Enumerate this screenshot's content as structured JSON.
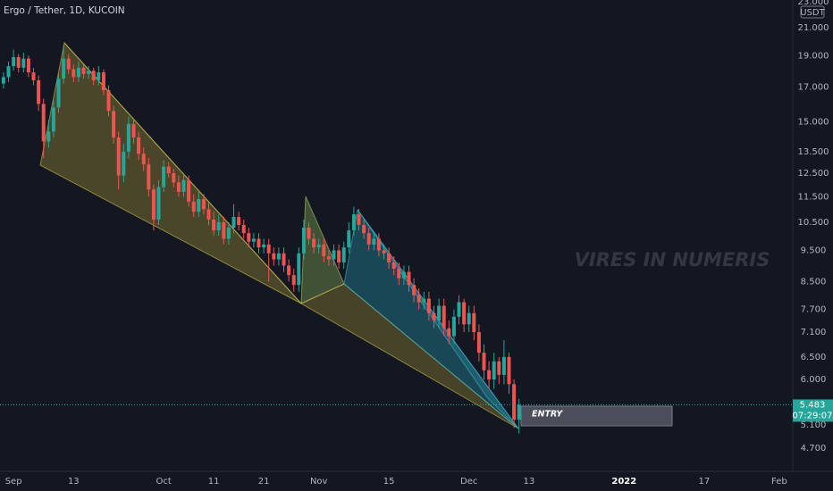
{
  "chart_data": {
    "type": "candlestick",
    "title": "Ergo / Tether, 1D, KUCOIN",
    "watermark": "VIRES IN NUMERIS",
    "annotation": "ENTRY",
    "currency": "USDT",
    "countdown": "07:29:07",
    "up_color": "#26a69a",
    "down_color": "#ef5350",
    "log_scale": true,
    "grid": false,
    "open": [
      17.2,
      17.6,
      18.3,
      18.9,
      18.2,
      18.8,
      17.9,
      17.4,
      16.0,
      14.0,
      14.5,
      15.8,
      17.5,
      18.8,
      18.1,
      17.6,
      18.2,
      17.8,
      18.0,
      17.4,
      17.9,
      16.8,
      15.6,
      14.2,
      12.4,
      13.5,
      14.9,
      14.2,
      13.4,
      12.9,
      11.8,
      10.6,
      11.9,
      12.8,
      12.5,
      12.1,
      11.7,
      12.2,
      11.3,
      10.9,
      11.4,
      11.0,
      10.6,
      10.2,
      10.5,
      9.9,
      10.3,
      10.7,
      10.4,
      10.1,
      9.8,
      9.9,
      9.6,
      9.7,
      9.4,
      9.2,
      9.4,
      9.0,
      8.7,
      8.4,
      9.4,
      10.3,
      9.9,
      9.6,
      9.7,
      9.3,
      9.2,
      9.5,
      9.1,
      9.6,
      10.2,
      10.8,
      10.4,
      10.1,
      9.7,
      9.9,
      9.5,
      9.4,
      9.1,
      8.9,
      8.6,
      8.8,
      8.4,
      8.1,
      7.9,
      8.0,
      7.6,
      7.4,
      7.8,
      7.2,
      7.0,
      7.5,
      7.9,
      7.3,
      7.6,
      7.1,
      6.6,
      6.2,
      6.0,
      6.4,
      6.1,
      6.5,
      5.9,
      5.2
    ],
    "high": [
      17.9,
      18.6,
      19.4,
      19.1,
      19.2,
      19.0,
      18.2,
      17.7,
      16.3,
      15.1,
      16.2,
      17.9,
      19.7,
      19.1,
      18.4,
      18.6,
      18.4,
      18.3,
      18.2,
      18.3,
      18.1,
      17.1,
      15.9,
      14.5,
      13.9,
      15.3,
      15.2,
      14.5,
      13.7,
      13.2,
      12.0,
      12.2,
      13.1,
      13.0,
      12.7,
      12.4,
      12.5,
      12.4,
      11.6,
      11.7,
      11.6,
      11.3,
      10.9,
      10.8,
      10.7,
      10.5,
      11.2,
      10.9,
      10.6,
      10.3,
      10.1,
      10.1,
      9.9,
      9.9,
      9.6,
      9.6,
      9.6,
      9.2,
      8.9,
      9.6,
      10.6,
      10.5,
      10.1,
      9.9,
      9.9,
      9.5,
      9.7,
      9.7,
      9.8,
      10.5,
      11.1,
      11.0,
      10.6,
      10.3,
      10.1,
      10.1,
      9.7,
      9.6,
      9.3,
      9.1,
      9.0,
      9.0,
      8.6,
      8.3,
      8.2,
      8.2,
      7.8,
      8.0,
      8.0,
      7.4,
      7.7,
      8.1,
      8.0,
      7.8,
      7.8,
      7.3,
      6.8,
      6.4,
      6.6,
      6.5,
      6.9,
      6.6,
      6.0,
      5.6
    ],
    "low": [
      16.9,
      17.3,
      18.0,
      17.9,
      17.9,
      17.6,
      17.1,
      15.6,
      13.2,
      13.7,
      14.2,
      15.5,
      17.2,
      17.8,
      17.3,
      17.3,
      17.5,
      17.5,
      17.1,
      17.1,
      16.5,
      15.3,
      13.9,
      11.8,
      12.1,
      13.2,
      13.9,
      13.1,
      12.6,
      11.5,
      10.2,
      10.4,
      11.7,
      12.3,
      11.9,
      11.5,
      11.5,
      11.1,
      10.7,
      10.7,
      10.8,
      10.4,
      10.0,
      10.0,
      9.7,
      9.7,
      10.1,
      10.2,
      9.9,
      9.6,
      9.6,
      9.4,
      9.4,
      8.5,
      9.0,
      9.0,
      8.8,
      8.5,
      8.2,
      8.2,
      9.2,
      9.7,
      9.4,
      9.4,
      9.1,
      9.0,
      9.0,
      8.9,
      8.9,
      9.4,
      10.0,
      10.2,
      9.9,
      9.5,
      9.5,
      9.3,
      9.2,
      8.9,
      8.7,
      8.4,
      8.4,
      8.2,
      7.9,
      7.7,
      7.7,
      7.4,
      7.2,
      7.2,
      7.0,
      6.8,
      6.8,
      7.3,
      7.1,
      7.1,
      6.9,
      6.4,
      6.0,
      5.8,
      5.8,
      5.9,
      5.9,
      5.7,
      5.05,
      4.95
    ],
    "close": [
      17.6,
      18.3,
      18.9,
      18.2,
      18.8,
      17.9,
      17.4,
      16.0,
      14.0,
      14.5,
      15.8,
      17.5,
      18.8,
      18.1,
      17.6,
      18.2,
      17.8,
      18.0,
      17.4,
      17.9,
      16.8,
      15.6,
      14.2,
      12.4,
      13.5,
      14.9,
      14.2,
      13.4,
      12.9,
      11.8,
      10.6,
      11.9,
      12.8,
      12.5,
      12.1,
      11.7,
      12.2,
      11.3,
      10.9,
      11.4,
      11.0,
      10.6,
      10.2,
      10.5,
      9.9,
      10.3,
      10.7,
      10.4,
      10.1,
      9.8,
      9.9,
      9.6,
      9.7,
      9.4,
      9.2,
      9.4,
      9.0,
      8.7,
      8.4,
      9.4,
      10.3,
      9.9,
      9.6,
      9.7,
      9.3,
      9.2,
      9.5,
      9.1,
      9.6,
      10.2,
      10.8,
      10.4,
      10.1,
      9.7,
      9.9,
      9.5,
      9.4,
      9.1,
      8.9,
      8.6,
      8.8,
      8.4,
      8.1,
      7.9,
      8.0,
      7.6,
      7.4,
      7.8,
      7.2,
      7.0,
      7.5,
      7.9,
      7.3,
      7.6,
      7.1,
      6.6,
      6.2,
      6.0,
      6.4,
      6.1,
      6.5,
      5.9,
      5.2,
      5.483
    ],
    "xlim": [
      -0.7,
      157.7
    ],
    "xticks": [
      {
        "value": 2,
        "label": "Sep"
      },
      {
        "value": 14,
        "label": "13"
      },
      {
        "value": 32,
        "label": "Oct"
      },
      {
        "value": 42,
        "label": "11"
      },
      {
        "value": 52,
        "label": "21"
      },
      {
        "value": 63,
        "label": "Nov"
      },
      {
        "value": 77,
        "label": "15"
      },
      {
        "value": 93,
        "label": "Dec"
      },
      {
        "value": 105,
        "label": "13"
      },
      {
        "value": 124,
        "label": "2022"
      },
      {
        "value": 140,
        "label": "17"
      },
      {
        "value": 155,
        "label": "Feb"
      }
    ],
    "ylim": [
      4.34,
      23.16
    ],
    "yticks": [
      {
        "value": 23,
        "label": "23.000"
      },
      {
        "value": 21,
        "label": "21.000"
      },
      {
        "value": 19,
        "label": "19.000"
      },
      {
        "value": 17,
        "label": "17.000"
      },
      {
        "value": 15,
        "label": "15.000"
      },
      {
        "value": 13.5,
        "label": "13.500"
      },
      {
        "value": 12.5,
        "label": "12.500"
      },
      {
        "value": 11.5,
        "label": "11.500"
      },
      {
        "value": 10.5,
        "label": "10.500"
      },
      {
        "value": 9.5,
        "label": "9.500"
      },
      {
        "value": 8.5,
        "label": "8.500"
      },
      {
        "value": 7.7,
        "label": "7.700"
      },
      {
        "value": 7.1,
        "label": "7.100"
      },
      {
        "value": 6.5,
        "label": "6.500"
      },
      {
        "value": 6,
        "label": "6.000"
      },
      {
        "value": 5.1,
        "label": "5.100"
      },
      {
        "value": 4.7,
        "label": "4.700"
      }
    ]
  }
}
